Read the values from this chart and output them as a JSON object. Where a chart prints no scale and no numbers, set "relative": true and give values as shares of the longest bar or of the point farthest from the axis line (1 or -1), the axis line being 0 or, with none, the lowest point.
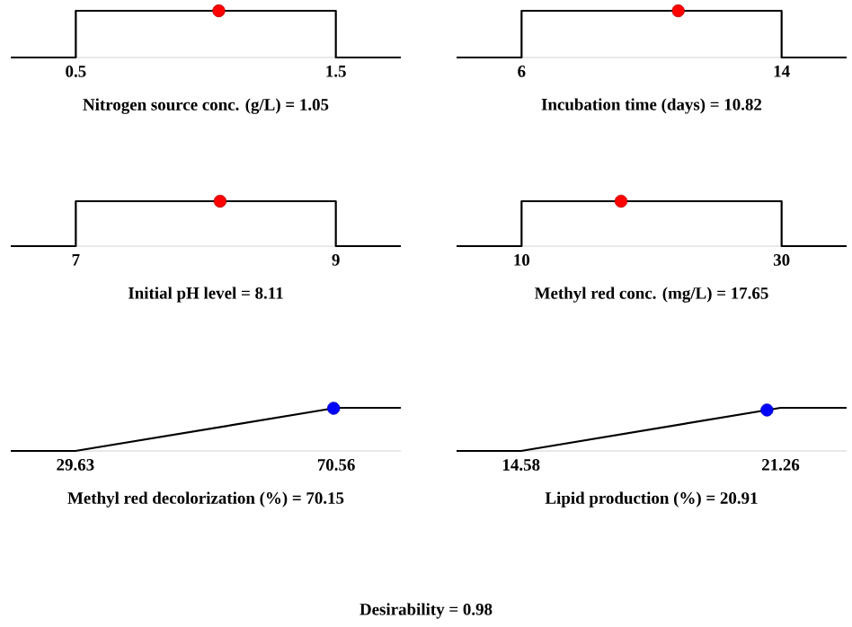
{
  "chart_data": [
    {
      "type": "line",
      "relative": true,
      "xlim": [
        0.25,
        1.75
      ],
      "xticks": [
        0.5,
        1.5
      ],
      "xlabel": "Nitrogen source conc. (g/L) = 1.05",
      "series": [
        {
          "color": "#000000",
          "x": [
            0.25,
            0.5,
            0.5,
            1.5,
            1.5,
            1.75
          ],
          "values": [
            0,
            0,
            1,
            1,
            0,
            0
          ]
        },
        {
          "type": "scatter",
          "marker": "circle",
          "color": "#ff0000",
          "x": [
            1.05
          ],
          "values": [
            1
          ]
        }
      ]
    },
    {
      "type": "line",
      "relative": true,
      "xlim": [
        4,
        16
      ],
      "xticks": [
        6,
        14
      ],
      "xlabel": "Incubation time (days) = 10.82",
      "series": [
        {
          "color": "#000000",
          "x": [
            4,
            6,
            6,
            14,
            14,
            16
          ],
          "values": [
            0,
            0,
            1,
            1,
            0,
            0
          ]
        },
        {
          "type": "scatter",
          "marker": "circle",
          "color": "#ff0000",
          "x": [
            10.82
          ],
          "values": [
            1
          ]
        }
      ]
    },
    {
      "type": "line",
      "relative": true,
      "xlim": [
        6.5,
        9.5
      ],
      "xticks": [
        7,
        9
      ],
      "xlabel": "Initial pH level = 8.11",
      "series": [
        {
          "color": "#000000",
          "x": [
            6.5,
            7,
            7,
            9,
            9,
            9.5
          ],
          "values": [
            0,
            0,
            1,
            1,
            0,
            0
          ]
        },
        {
          "type": "scatter",
          "marker": "circle",
          "color": "#ff0000",
          "x": [
            8.11
          ],
          "values": [
            1
          ]
        }
      ]
    },
    {
      "type": "line",
      "relative": true,
      "xlim": [
        5,
        35
      ],
      "xticks": [
        10,
        30
      ],
      "xlabel": "Methyl red conc. (mg/L)  = 17.65",
      "series": [
        {
          "color": "#000000",
          "x": [
            5,
            10,
            10,
            30,
            30,
            35
          ],
          "values": [
            0,
            0,
            1,
            1,
            0,
            0
          ]
        },
        {
          "type": "scatter",
          "marker": "circle",
          "color": "#ff0000",
          "x": [
            17.65
          ],
          "values": [
            1
          ]
        }
      ]
    },
    {
      "type": "line",
      "relative": true,
      "xlim": [
        19.5,
        80.7
      ],
      "xticks": [
        29.63,
        70.56
      ],
      "xlabel": "Methyl red decolorization (%) = 70.15",
      "series": [
        {
          "color": "#000000",
          "x": [
            19.5,
            29.63,
            70.56,
            80.7
          ],
          "values": [
            0,
            0,
            1,
            1
          ]
        },
        {
          "type": "scatter",
          "marker": "circle",
          "color": "#0000ff",
          "x": [
            70.15
          ],
          "values": [
            0.99
          ]
        }
      ]
    },
    {
      "type": "line",
      "relative": true,
      "xlim": [
        12.92,
        22.96
      ],
      "xticks": [
        14.58,
        21.26
      ],
      "xlabel": "Lipid production (%) = 20.91",
      "series": [
        {
          "color": "#000000",
          "x": [
            12.92,
            14.58,
            21.26,
            22.96
          ],
          "values": [
            0,
            0,
            1,
            1
          ]
        },
        {
          "type": "scatter",
          "marker": "circle",
          "color": "#0000ff",
          "x": [
            20.91
          ],
          "values": [
            0.95
          ]
        }
      ]
    },
    {
      "type": "other",
      "title": "Desirability = 0.98"
    }
  ]
}
